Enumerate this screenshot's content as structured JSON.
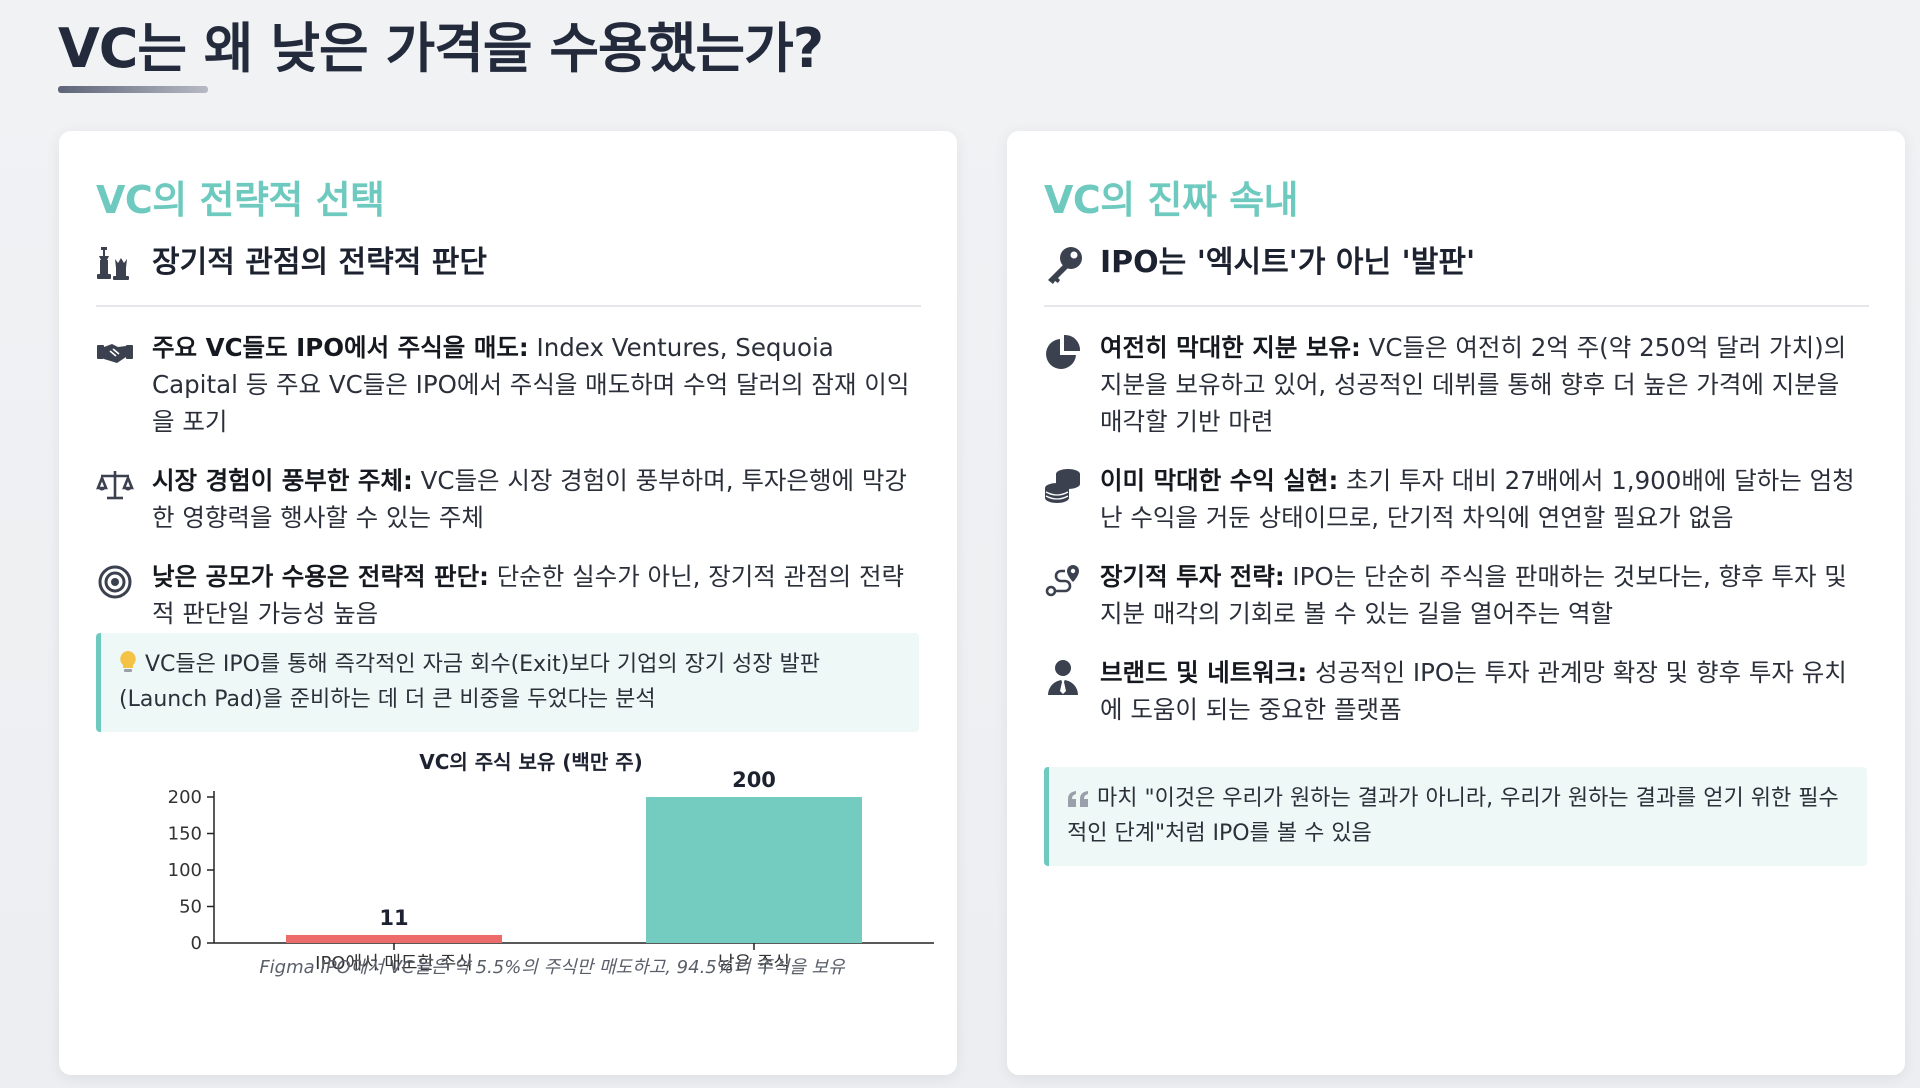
{
  "page": {
    "title": "VC는 왜 낮은 가격을 수용했는가?"
  },
  "left_card": {
    "title": "VC의 전략적 선택",
    "section_heading": "장기적 관점의 전략적 판단",
    "section_icon": "chess-icon",
    "items": [
      {
        "icon": "handshake-icon",
        "bold": "주요 VC들도 IPO에서 주식을 매도:",
        "text": " Index Ventures, Sequoia Capital 등 주요 VC들은 IPO에서 주식을 매도하며 수억 달러의 잠재 이익을 포기"
      },
      {
        "icon": "balance-scale-icon",
        "bold": "시장 경험이 풍부한 주체:",
        "text": " VC들은 시장 경험이 풍부하며, 투자은행에 막강한 영향력을 행사할 수 있는 주체"
      },
      {
        "icon": "target-icon",
        "bold": "낮은 공모가 수용은 전략적 판단:",
        "text": " 단순한 실수가 아닌, 장기적 관점의 전략적 판단일 가능성 높음"
      }
    ],
    "callout": {
      "icon": "lightbulb-icon",
      "text": "VC들은 IPO를 통해 즉각적인 자금 회수(Exit)보다 기업의 장기 성장 발판(Launch Pad)을 준비하는 데 더 큰 비중을 두었다는 분석"
    }
  },
  "right_card": {
    "title": "VC의 진짜 속내",
    "section_heading": "IPO는 '엑시트'가 아닌 '발판'",
    "section_icon": "key-icon",
    "items": [
      {
        "icon": "pie-chart-icon",
        "bold": "여전히 막대한 지분 보유:",
        "text": " VC들은 여전히 2억 주(약 250억 달러 가치)의 지분을 보유하고 있어, 성공적인 데뷔를 통해 향후 더 높은 가격에 지분을 매각할 기반 마련"
      },
      {
        "icon": "coins-icon",
        "bold": "이미 막대한 수익 실현:",
        "text": " 초기 투자 대비 27배에서 1,900배에 달하는 엄청난 수익을 거둔 상태이므로, 단기적 차익에 연연할 필요가 없음"
      },
      {
        "icon": "route-icon",
        "bold": "장기적 투자 전략:",
        "text": " IPO는 단순히 주식을 판매하는 것보다는, 향후 투자 및 지분 매각의 기회로 볼 수 있는 길을 열어주는 역할"
      },
      {
        "icon": "user-tie-icon",
        "bold": "브랜드 및 네트워크:",
        "text": " 성공적인 IPO는 투자 관계망 확장 및 향후 투자 유치에 도움이 되는 중요한 플랫폼"
      }
    ],
    "callout": {
      "icon": "quote-icon",
      "text": "마치 \"이것은 우리가 원하는 결과가 아니라, 우리가 원하는 결과를 얻기 위한 필수적인 단계\"처럼 IPO를 볼 수 있음"
    }
  },
  "chart_data": {
    "type": "bar",
    "title": "VC의 주식 보유 (백만 주)",
    "categories": [
      "IPO에서 매도한 주식",
      "남은 주식"
    ],
    "values": [
      11,
      200
    ],
    "data_labels": [
      "11",
      "200"
    ],
    "colors": [
      "#ec6b6b",
      "#74cbc0"
    ],
    "ylim": [
      0,
      200
    ],
    "yticks": [
      "0",
      "50",
      "100",
      "150",
      "200"
    ],
    "xlabel": "",
    "ylabel": "",
    "grid": false,
    "caption": "Figma IPO에서 VC들은 약 5.5%의 주식만 매도하고, 94.5%의 주식을 보유"
  }
}
